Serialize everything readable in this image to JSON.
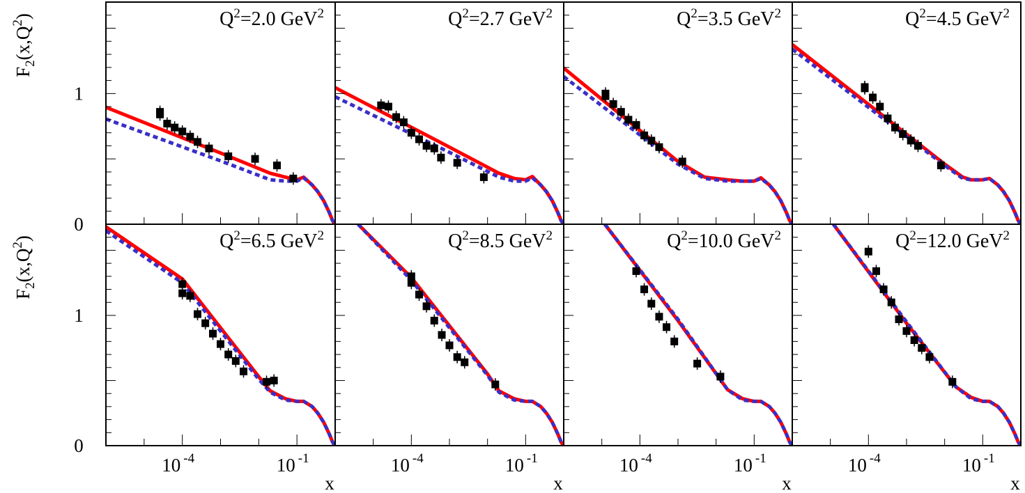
{
  "chart_data": {
    "type": "scatter",
    "ylabel": "F2(x,Q2)",
    "xlabel": "x",
    "xscale": "log",
    "xlim": [
      1e-06,
      1
    ],
    "ylim": [
      0,
      1.7
    ],
    "y_ticks": [
      "0",
      "1"
    ],
    "x_ticks": [
      {
        "base": "10",
        "exp": "-4",
        "value": 0.0001
      },
      {
        "base": "10",
        "exp": "-1",
        "value": 0.1
      }
    ],
    "colors": {
      "red_curve": "#ff0000",
      "blue_curve": "#3a2fc8",
      "points": "#000000"
    },
    "panels": [
      {
        "label": {
          "pre": "Q",
          "sup1": "2",
          "mid": "=2.0 GeV",
          "sup2": "2"
        },
        "points": [
          [
            2.6e-05,
            0.84
          ],
          [
            2.6e-05,
            0.86
          ],
          [
            4e-05,
            0.77
          ],
          [
            6.3e-05,
            0.74
          ],
          [
            0.0001,
            0.71
          ],
          [
            0.00016,
            0.67
          ],
          [
            0.00025,
            0.63
          ],
          [
            0.0005,
            0.58
          ],
          [
            0.0016,
            0.52
          ],
          [
            0.008,
            0.5
          ],
          [
            0.03,
            0.45
          ],
          [
            0.08,
            0.35
          ]
        ],
        "red": [
          [
            1e-06,
            0.895
          ],
          [
            0.001,
            0.545
          ],
          [
            0.02,
            0.39
          ],
          [
            0.05,
            0.36
          ],
          [
            0.1,
            0.34
          ],
          [
            0.15,
            0.36
          ],
          [
            0.25,
            0.3
          ],
          [
            0.35,
            0.25
          ],
          [
            0.5,
            0.18
          ],
          [
            0.7,
            0.09
          ],
          [
            0.85,
            0.03
          ],
          [
            0.98,
            0.0
          ]
        ],
        "blue": [
          [
            1e-06,
            0.805
          ],
          [
            0.001,
            0.485
          ],
          [
            0.02,
            0.34
          ],
          [
            0.05,
            0.33
          ],
          [
            0.1,
            0.33
          ],
          [
            0.15,
            0.355
          ],
          [
            0.25,
            0.3
          ],
          [
            0.35,
            0.25
          ],
          [
            0.5,
            0.18
          ],
          [
            0.7,
            0.09
          ],
          [
            0.85,
            0.03
          ],
          [
            0.98,
            0.0
          ]
        ]
      },
      {
        "label": {
          "pre": "Q",
          "sup1": "2",
          "mid": "=2.7 GeV",
          "sup2": "2"
        },
        "points": [
          [
            1.6e-05,
            0.91
          ],
          [
            2.5e-05,
            0.9
          ],
          [
            4e-05,
            0.82
          ],
          [
            6.3e-05,
            0.78
          ],
          [
            0.0001,
            0.7
          ],
          [
            0.00016,
            0.65
          ],
          [
            0.00025,
            0.6
          ],
          [
            0.0004,
            0.58
          ],
          [
            0.0006,
            0.51
          ],
          [
            0.0016,
            0.47
          ],
          [
            0.008,
            0.36
          ]
        ],
        "red": [
          [
            1e-06,
            1.045
          ],
          [
            0.001,
            0.59
          ],
          [
            0.02,
            0.39
          ],
          [
            0.05,
            0.35
          ],
          [
            0.1,
            0.34
          ],
          [
            0.15,
            0.365
          ],
          [
            0.25,
            0.3
          ],
          [
            0.35,
            0.25
          ],
          [
            0.5,
            0.18
          ],
          [
            0.7,
            0.09
          ],
          [
            0.85,
            0.03
          ],
          [
            0.98,
            0.0
          ]
        ],
        "blue": [
          [
            1e-06,
            0.975
          ],
          [
            0.001,
            0.55
          ],
          [
            0.02,
            0.36
          ],
          [
            0.05,
            0.33
          ],
          [
            0.1,
            0.33
          ],
          [
            0.15,
            0.355
          ],
          [
            0.25,
            0.3
          ],
          [
            0.35,
            0.25
          ],
          [
            0.5,
            0.18
          ],
          [
            0.7,
            0.09
          ],
          [
            0.85,
            0.03
          ],
          [
            0.98,
            0.0
          ]
        ]
      },
      {
        "label": {
          "pre": "Q",
          "sup1": "2",
          "mid": "=3.5 GeV",
          "sup2": "2"
        },
        "points": [
          [
            1.25e-05,
            0.98
          ],
          [
            1.25e-05,
            1.0
          ],
          [
            2e-05,
            0.92
          ],
          [
            3.2e-05,
            0.86
          ],
          [
            5e-05,
            0.8
          ],
          [
            8e-05,
            0.76
          ],
          [
            0.00013,
            0.68
          ],
          [
            0.0002,
            0.64
          ],
          [
            0.00032,
            0.59
          ],
          [
            0.0013,
            0.48
          ]
        ],
        "red": [
          [
            1e-06,
            1.195
          ],
          [
            0.001,
            0.48
          ],
          [
            0.005,
            0.36
          ],
          [
            0.02,
            0.34
          ],
          [
            0.05,
            0.33
          ],
          [
            0.1,
            0.33
          ],
          [
            0.15,
            0.355
          ],
          [
            0.25,
            0.3
          ],
          [
            0.35,
            0.25
          ],
          [
            0.5,
            0.18
          ],
          [
            0.7,
            0.09
          ],
          [
            0.85,
            0.03
          ],
          [
            0.98,
            0.0
          ]
        ],
        "blue": [
          [
            1e-06,
            1.13
          ],
          [
            0.001,
            0.46
          ],
          [
            0.005,
            0.35
          ],
          [
            0.02,
            0.33
          ],
          [
            0.05,
            0.33
          ],
          [
            0.1,
            0.33
          ],
          [
            0.15,
            0.35
          ],
          [
            0.25,
            0.3
          ],
          [
            0.35,
            0.25
          ],
          [
            0.5,
            0.18
          ],
          [
            0.7,
            0.09
          ],
          [
            0.85,
            0.03
          ],
          [
            0.98,
            0.0
          ]
        ]
      },
      {
        "label": {
          "pre": "Q",
          "sup1": "2",
          "mid": "=4.5 GeV",
          "sup2": "2"
        },
        "points": [
          [
            8e-05,
            1.04
          ],
          [
            8e-05,
            1.05
          ],
          [
            0.00013,
            0.97
          ],
          [
            0.0002,
            0.9
          ],
          [
            0.00032,
            0.81
          ],
          [
            0.0005,
            0.74
          ],
          [
            0.0008,
            0.69
          ],
          [
            0.0013,
            0.64
          ],
          [
            0.002,
            0.6
          ],
          [
            0.008,
            0.45
          ]
        ],
        "red": [
          [
            1e-06,
            1.375
          ],
          [
            0.01,
            0.46
          ],
          [
            0.03,
            0.36
          ],
          [
            0.05,
            0.34
          ],
          [
            0.1,
            0.34
          ],
          [
            0.15,
            0.35
          ],
          [
            0.25,
            0.3
          ],
          [
            0.35,
            0.25
          ],
          [
            0.5,
            0.18
          ],
          [
            0.7,
            0.09
          ],
          [
            0.85,
            0.03
          ],
          [
            0.98,
            0.0
          ]
        ],
        "blue": [
          [
            1e-06,
            1.34
          ],
          [
            0.01,
            0.45
          ],
          [
            0.03,
            0.35
          ],
          [
            0.05,
            0.34
          ],
          [
            0.1,
            0.34
          ],
          [
            0.15,
            0.35
          ],
          [
            0.25,
            0.3
          ],
          [
            0.35,
            0.25
          ],
          [
            0.5,
            0.18
          ],
          [
            0.7,
            0.09
          ],
          [
            0.85,
            0.03
          ],
          [
            0.98,
            0.0
          ]
        ]
      },
      {
        "label": {
          "pre": "Q",
          "sup1": "2",
          "mid": "=6.5 GeV",
          "sup2": "2"
        },
        "points": [
          [
            0.0001,
            1.24
          ],
          [
            0.0001,
            1.17
          ],
          [
            0.00016,
            1.15
          ],
          [
            0.00025,
            1.01
          ],
          [
            0.0004,
            0.94
          ],
          [
            0.00063,
            0.86
          ],
          [
            0.001,
            0.78
          ],
          [
            0.0016,
            0.7
          ],
          [
            0.0025,
            0.65
          ],
          [
            0.004,
            0.57
          ],
          [
            0.016,
            0.49
          ],
          [
            0.025,
            0.5
          ]
        ],
        "red": [
          [
            1e-06,
            1.68
          ],
          [
            0.0001,
            1.28
          ],
          [
            0.01,
            0.53
          ],
          [
            0.02,
            0.42
          ],
          [
            0.05,
            0.36
          ],
          [
            0.1,
            0.34
          ],
          [
            0.15,
            0.34
          ],
          [
            0.25,
            0.3
          ],
          [
            0.35,
            0.25
          ],
          [
            0.5,
            0.18
          ],
          [
            0.7,
            0.09
          ],
          [
            0.85,
            0.03
          ],
          [
            0.98,
            0.0
          ]
        ],
        "blue": [
          [
            1e-06,
            1.65
          ],
          [
            0.0001,
            1.25
          ],
          [
            0.01,
            0.51
          ],
          [
            0.02,
            0.41
          ],
          [
            0.05,
            0.35
          ],
          [
            0.1,
            0.34
          ],
          [
            0.15,
            0.34
          ],
          [
            0.25,
            0.3
          ],
          [
            0.35,
            0.25
          ],
          [
            0.5,
            0.18
          ],
          [
            0.7,
            0.09
          ],
          [
            0.85,
            0.03
          ],
          [
            0.98,
            0.0
          ]
        ]
      },
      {
        "label": {
          "pre": "Q",
          "sup1": "2",
          "mid": "=8.5 GeV",
          "sup2": "2"
        },
        "points": [
          [
            0.0001,
            1.3
          ],
          [
            0.0001,
            1.25
          ],
          [
            0.00016,
            1.16
          ],
          [
            0.00025,
            1.07
          ],
          [
            0.0004,
            0.96
          ],
          [
            0.00063,
            0.85
          ],
          [
            0.001,
            0.77
          ],
          [
            0.0016,
            0.68
          ],
          [
            0.0025,
            0.64
          ],
          [
            0.016,
            0.47
          ]
        ],
        "red": [
          [
            4e-06,
            1.7
          ],
          [
            0.0001,
            1.29
          ],
          [
            0.01,
            0.55
          ],
          [
            0.02,
            0.42
          ],
          [
            0.05,
            0.36
          ],
          [
            0.1,
            0.34
          ],
          [
            0.15,
            0.34
          ],
          [
            0.25,
            0.3
          ],
          [
            0.35,
            0.25
          ],
          [
            0.5,
            0.18
          ],
          [
            0.7,
            0.09
          ],
          [
            0.85,
            0.03
          ],
          [
            0.98,
            0.0
          ]
        ],
        "blue": [
          [
            4e-06,
            1.7
          ],
          [
            0.0001,
            1.27
          ],
          [
            0.01,
            0.54
          ],
          [
            0.02,
            0.41
          ],
          [
            0.05,
            0.35
          ],
          [
            0.1,
            0.34
          ],
          [
            0.15,
            0.34
          ],
          [
            0.25,
            0.3
          ],
          [
            0.35,
            0.25
          ],
          [
            0.5,
            0.18
          ],
          [
            0.7,
            0.09
          ],
          [
            0.85,
            0.03
          ],
          [
            0.98,
            0.0
          ]
        ]
      },
      {
        "label": {
          "pre": "Q",
          "sup1": "2",
          "mid": "=10.0 GeV",
          "sup2": "2"
        },
        "points": [
          [
            8e-05,
            1.34
          ],
          [
            0.00013,
            1.2
          ],
          [
            0.0002,
            1.09
          ],
          [
            0.00032,
            0.99
          ],
          [
            0.0005,
            0.91
          ],
          [
            0.0008,
            0.8
          ],
          [
            0.0032,
            0.63
          ],
          [
            0.013,
            0.53
          ]
        ],
        "red": [
          [
            1.2e-05,
            1.7
          ],
          [
            0.001,
            0.96
          ],
          [
            0.02,
            0.43
          ],
          [
            0.05,
            0.36
          ],
          [
            0.1,
            0.34
          ],
          [
            0.15,
            0.34
          ],
          [
            0.25,
            0.3
          ],
          [
            0.35,
            0.25
          ],
          [
            0.5,
            0.18
          ],
          [
            0.7,
            0.09
          ],
          [
            0.85,
            0.03
          ],
          [
            0.98,
            0.0
          ]
        ],
        "blue": [
          [
            1.2e-05,
            1.7
          ],
          [
            0.001,
            0.97
          ],
          [
            0.02,
            0.43
          ],
          [
            0.05,
            0.35
          ],
          [
            0.1,
            0.34
          ],
          [
            0.15,
            0.34
          ],
          [
            0.25,
            0.3
          ],
          [
            0.35,
            0.25
          ],
          [
            0.5,
            0.18
          ],
          [
            0.7,
            0.09
          ],
          [
            0.85,
            0.03
          ],
          [
            0.98,
            0.0
          ]
        ]
      },
      {
        "label": {
          "pre": "Q",
          "sup1": "2",
          "mid": "=12.0 GeV",
          "sup2": "2"
        },
        "points": [
          [
            0.0001,
            1.49
          ],
          [
            0.00016,
            1.34
          ],
          [
            0.00025,
            1.2
          ],
          [
            0.0004,
            1.1
          ],
          [
            0.00063,
            0.97
          ],
          [
            0.001,
            0.88
          ],
          [
            0.0016,
            0.81
          ],
          [
            0.0025,
            0.75
          ],
          [
            0.004,
            0.68
          ],
          [
            0.016,
            0.49
          ]
        ],
        "red": [
          [
            1.2e-05,
            1.7
          ],
          [
            0.001,
            0.94
          ],
          [
            0.02,
            0.45
          ],
          [
            0.05,
            0.37
          ],
          [
            0.1,
            0.34
          ],
          [
            0.15,
            0.34
          ],
          [
            0.25,
            0.3
          ],
          [
            0.35,
            0.25
          ],
          [
            0.5,
            0.18
          ],
          [
            0.7,
            0.09
          ],
          [
            0.85,
            0.03
          ],
          [
            0.98,
            0.0
          ]
        ],
        "blue": [
          [
            1.2e-05,
            1.7
          ],
          [
            0.001,
            0.95
          ],
          [
            0.02,
            0.45
          ],
          [
            0.05,
            0.36
          ],
          [
            0.1,
            0.34
          ],
          [
            0.15,
            0.34
          ],
          [
            0.25,
            0.3
          ],
          [
            0.35,
            0.25
          ],
          [
            0.5,
            0.18
          ],
          [
            0.7,
            0.09
          ],
          [
            0.85,
            0.03
          ],
          [
            0.98,
            0.0
          ]
        ]
      }
    ]
  }
}
